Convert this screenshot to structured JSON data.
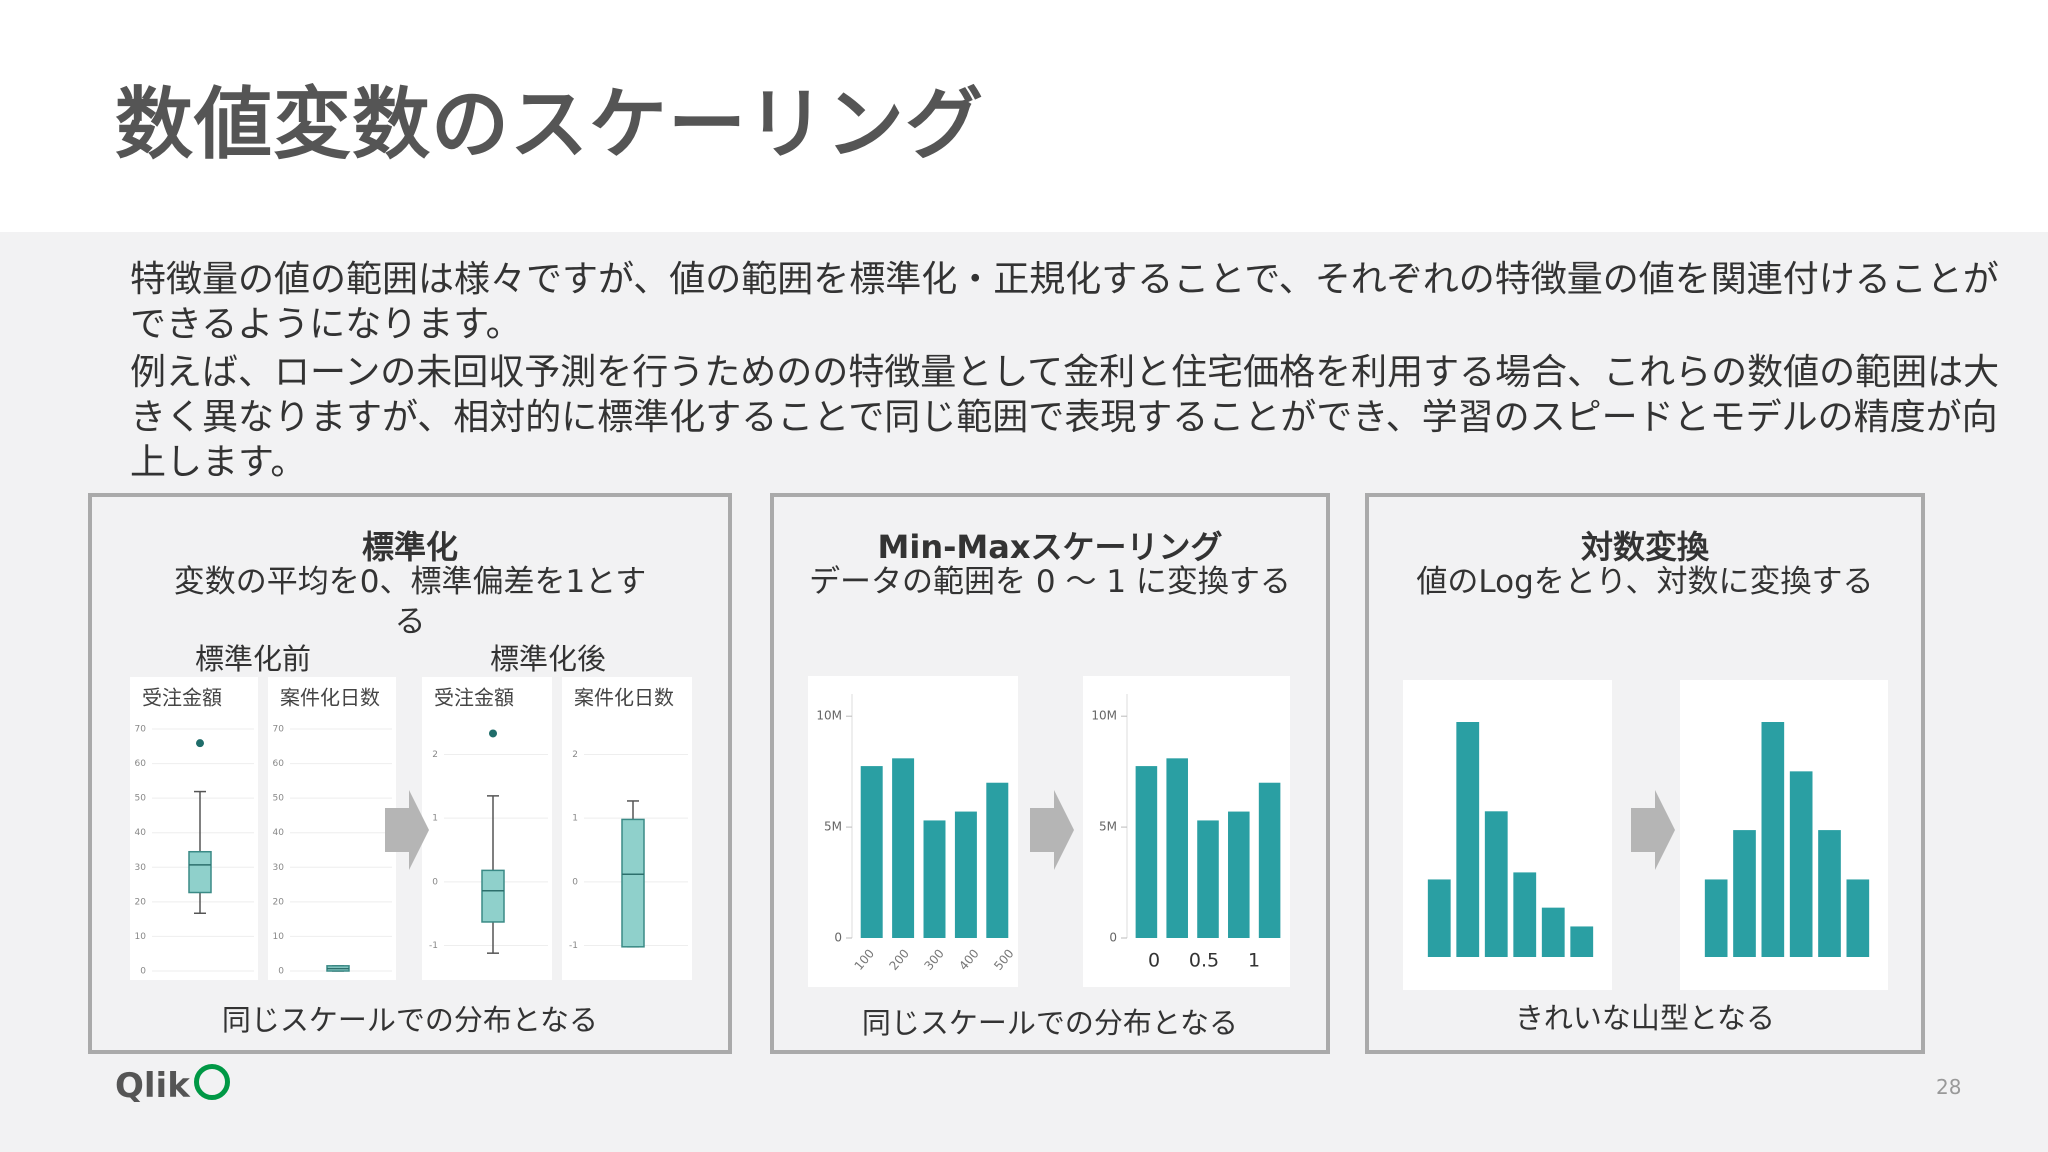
{
  "title": "数値変数のスケーリング",
  "paragraphs": [
    "特徴量の値の範囲は様々ですが、値の範囲を標準化・正規化することで、それぞれの特徴量の値を関連付けることができるようになります。",
    "例えば、ローンの未回収予測を行うためのの特徴量として金利と住宅価格を利用する場合、これらの数値の範囲は大きく異なりますが、相対的に標準化することで同じ範囲で表現することができ、学習のスピードとモデルの精度が向上します。"
  ],
  "panels": [
    {
      "heading": "標準化",
      "description": "変数の平均を0、標準偏差を1とする",
      "labels": [
        "標準化前",
        "標準化後"
      ],
      "charts": [
        {
          "type": "box",
          "title": "受注金額",
          "ylim": [
            0,
            70
          ],
          "yticks": [
            70,
            60,
            50,
            40,
            30,
            20,
            10,
            0
          ],
          "box": {
            "min": 16.7,
            "q1": 22.7,
            "median": 30.7,
            "q3": 34.5,
            "max": 51.9
          },
          "outliers": [
            65.9
          ]
        },
        {
          "type": "box",
          "title": "案件化日数",
          "ylim": [
            0,
            70
          ],
          "yticks": [
            70,
            60,
            50,
            40,
            30,
            20,
            10,
            0
          ],
          "box": {
            "min": 0,
            "q1": 0,
            "median": 0.7,
            "q3": 1.5,
            "max": 1.5
          },
          "outliers": []
        },
        {
          "type": "box",
          "title": "受注金額",
          "ylim": [
            -1.4,
            2.4
          ],
          "yticks": [
            2,
            1,
            0,
            -1
          ],
          "box": {
            "min": -1.12,
            "q1": -0.63,
            "median": -0.14,
            "q3": 0.18,
            "max": 1.35
          },
          "outliers": [
            2.33
          ]
        },
        {
          "type": "box",
          "title": "案件化日数",
          "ylim": [
            -1.4,
            2.4
          ],
          "yticks": [
            2,
            1,
            0,
            -1
          ],
          "box": {
            "min": -1.02,
            "q1": -1.02,
            "median": 0.12,
            "q3": 0.98,
            "max": 1.27
          },
          "outliers": []
        }
      ],
      "caption": "同じスケールでの分布となる"
    },
    {
      "heading": "Min-Maxスケーリング",
      "description": "データの範囲を 0 ～ 1 に変換する",
      "charts": [
        {
          "type": "bar",
          "values": [
            7750000,
            8100000,
            5300000,
            5700000,
            7000000
          ],
          "color": "#2a9fa3",
          "ylim": [
            0,
            11000000
          ],
          "yticks": [
            0,
            {
              "value": 5000000,
              "label": "5M"
            },
            {
              "value": 10000000,
              "label": "10M"
            }
          ],
          "xlim": [
            75,
            525
          ],
          "xticks": [
            100,
            200,
            300,
            400,
            500
          ]
        },
        {
          "type": "bar",
          "values": [
            7750000,
            8100000,
            5300000,
            5700000,
            7000000
          ],
          "color": "#2a9fa3",
          "ylim": [
            0,
            11000000
          ],
          "yticks": [
            0,
            {
              "value": 5000000,
              "label": "5M"
            },
            {
              "value": 10000000,
              "label": "10M"
            }
          ],
          "xlim": [
            -0.23,
            1.31
          ],
          "xticks": [
            0,
            0.5,
            1
          ]
        }
      ],
      "caption": "同じスケールでの分布となる"
    },
    {
      "heading": "対数変換",
      "description": "値のLogをとり、対数に変換する",
      "charts": [
        {
          "type": "hist",
          "values": [
            33,
            100,
            62,
            36,
            21,
            13
          ],
          "color": "#2a9fa3",
          "ylim": [
            0,
            100
          ]
        },
        {
          "type": "hist",
          "values": [
            33,
            54,
            100,
            79,
            54,
            33
          ],
          "color": "#2a9fa3",
          "ylim": [
            0,
            100
          ]
        }
      ],
      "caption": "きれいな山型となる"
    }
  ],
  "logo": "Qlik",
  "page_number": "28"
}
